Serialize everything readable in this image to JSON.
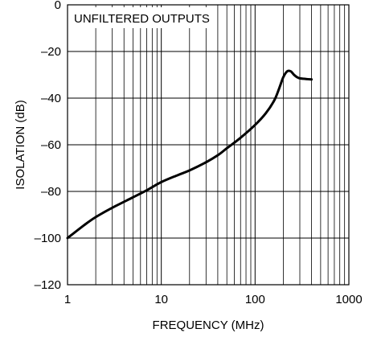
{
  "chart_data": {
    "type": "line",
    "xscale": "log",
    "xlabel": "FREQUENCY (MHz)",
    "ylabel": "ISOLATION (dB)",
    "xlim": [
      1,
      1000
    ],
    "ylim": [
      -120,
      0
    ],
    "xticks": [
      1,
      10,
      100,
      1000
    ],
    "xtick_labels": [
      "1",
      "10",
      "100",
      "1000"
    ],
    "yticks": [
      0,
      -20,
      -40,
      -60,
      -80,
      -100,
      -120
    ],
    "ytick_labels": [
      "0",
      "–20",
      "–40",
      "–60",
      "–80",
      "–100",
      "–120"
    ],
    "grid": true,
    "annotation": "UNFILTERED OUTPUTS",
    "series": [
      {
        "x": [
          1,
          1.5,
          2,
          3,
          5,
          7,
          10,
          15,
          20,
          30,
          40,
          50,
          70,
          100,
          130,
          160,
          180,
          200,
          220,
          240,
          260,
          280,
          300,
          350,
          400
        ],
        "y": [
          -100,
          -94.5,
          -91,
          -87,
          -82.5,
          -79.5,
          -76,
          -73,
          -71,
          -67.5,
          -64.5,
          -61.5,
          -57,
          -51.5,
          -46.5,
          -41,
          -36,
          -31,
          -28.5,
          -28.5,
          -30,
          -31,
          -31.5,
          -31.8,
          -32
        ]
      }
    ]
  }
}
